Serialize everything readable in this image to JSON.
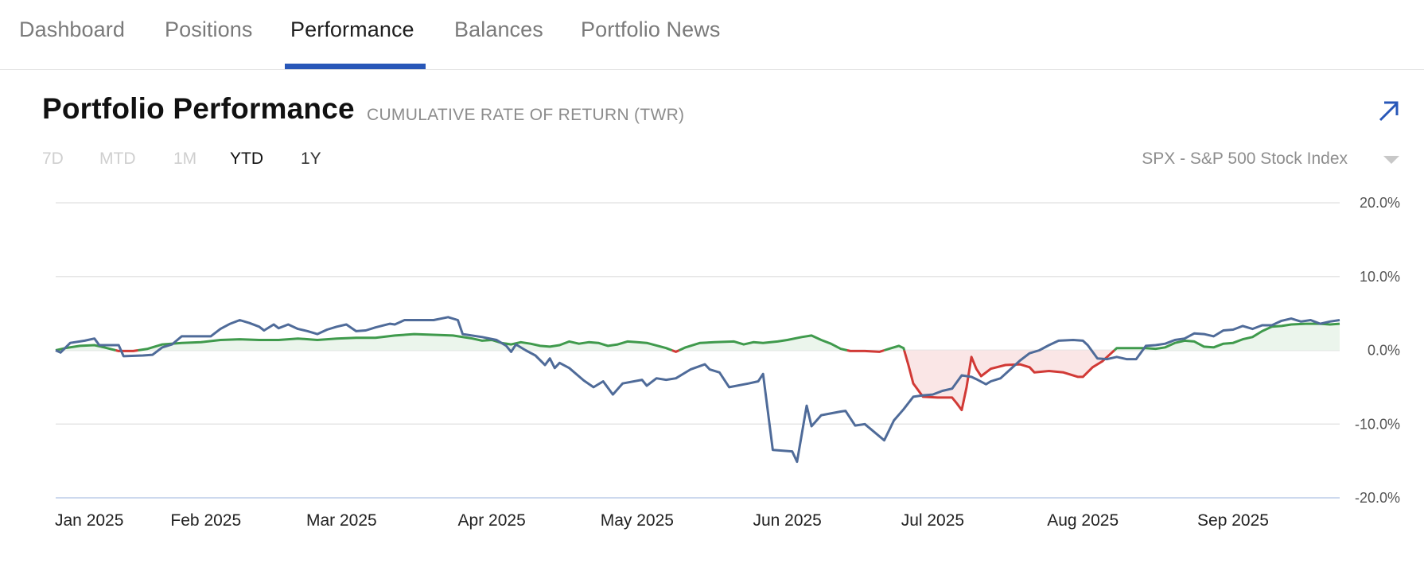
{
  "nav": {
    "tabs": [
      {
        "label": "Dashboard",
        "active": false
      },
      {
        "label": "Positions",
        "active": false
      },
      {
        "label": "Performance",
        "active": true
      },
      {
        "label": "Balances",
        "active": false
      },
      {
        "label": "Portfolio News",
        "active": false
      }
    ]
  },
  "header": {
    "title": "Portfolio Performance",
    "subtitle": "CUMULATIVE RATE OF RETURN (TWR)",
    "expand_icon": "arrow-up-right-icon"
  },
  "ranges": [
    {
      "label": "7D",
      "state": "disabled"
    },
    {
      "label": "MTD",
      "state": "disabled"
    },
    {
      "label": "1M",
      "state": "disabled"
    },
    {
      "label": "YTD",
      "state": "active"
    },
    {
      "label": "1Y",
      "state": "enabled"
    }
  ],
  "benchmark_select": {
    "selected": "SPX - S&P 500 Stock Index",
    "icon": "caret-down-icon"
  },
  "colors": {
    "accent": "#2857b8",
    "series_blue": "#4f6b99",
    "series_green": "#3f9a4c",
    "series_red": "#d13a36",
    "fill_green": "#ebf5ec",
    "fill_red": "#fae6e6",
    "grid": "#e6e6e6",
    "baseline_axis": "#cdd9ee"
  },
  "chart_data": {
    "type": "line",
    "title": "Portfolio Performance",
    "subtitle": "CUMULATIVE RATE OF RETURN (TWR)",
    "xlabel": "",
    "ylabel": "",
    "x_unit": "day of year 2025",
    "xlim": [
      0,
      265
    ],
    "ylim": [
      -20,
      20
    ],
    "grid": true,
    "legend": "none",
    "y_ticks": [
      20,
      10,
      0,
      -10,
      -20
    ],
    "y_tick_labels": [
      "20.0%",
      "10.0%",
      "0.0%",
      "-10.0%",
      "-20.0%"
    ],
    "x_ticks": [
      0,
      31,
      59,
      90,
      120,
      151,
      181,
      212,
      243
    ],
    "x_tick_labels": [
      "Jan 2025",
      "Feb 2025",
      "Mar 2025",
      "Apr 2025",
      "May 2025",
      "Jun 2025",
      "Jul 2025",
      "Aug 2025",
      "Sep 2025"
    ],
    "series": [
      {
        "name": "SPX - S&P 500 Stock Index",
        "color_rule": "green above 0, red below 0, area filled to 0",
        "points": [
          [
            0,
            0.0
          ],
          [
            2,
            0.3
          ],
          [
            5,
            0.6
          ],
          [
            8,
            0.7
          ],
          [
            10,
            0.4
          ],
          [
            13,
            -0.1
          ],
          [
            16,
            -0.1
          ],
          [
            19,
            0.2
          ],
          [
            22,
            0.8
          ],
          [
            26,
            1.0
          ],
          [
            30,
            1.1
          ],
          [
            34,
            1.4
          ],
          [
            38,
            1.5
          ],
          [
            42,
            1.4
          ],
          [
            46,
            1.4
          ],
          [
            50,
            1.6
          ],
          [
            54,
            1.4
          ],
          [
            58,
            1.6
          ],
          [
            62,
            1.7
          ],
          [
            66,
            1.7
          ],
          [
            70,
            2.0
          ],
          [
            74,
            2.2
          ],
          [
            78,
            2.1
          ],
          [
            82,
            2.0
          ],
          [
            86,
            1.6
          ],
          [
            88,
            1.3
          ],
          [
            90,
            1.4
          ],
          [
            92,
            1.0
          ],
          [
            94,
            0.8
          ],
          [
            96,
            1.1
          ],
          [
            98,
            0.9
          ],
          [
            100,
            0.6
          ],
          [
            102,
            0.5
          ],
          [
            104,
            0.7
          ],
          [
            106,
            1.2
          ],
          [
            108,
            0.9
          ],
          [
            110,
            1.1
          ],
          [
            112,
            1.0
          ],
          [
            114,
            0.6
          ],
          [
            116,
            0.8
          ],
          [
            118,
            1.2
          ],
          [
            120,
            1.1
          ],
          [
            122,
            1.0
          ],
          [
            126,
            0.3
          ],
          [
            128,
            -0.2
          ],
          [
            130,
            0.4
          ],
          [
            133,
            1.0
          ],
          [
            136,
            1.1
          ],
          [
            140,
            1.2
          ],
          [
            142,
            0.8
          ],
          [
            144,
            1.1
          ],
          [
            146,
            1.0
          ],
          [
            149,
            1.2
          ],
          [
            151,
            1.4
          ],
          [
            154,
            1.8
          ],
          [
            156,
            2.0
          ],
          [
            158,
            1.4
          ],
          [
            160,
            0.9
          ],
          [
            162,
            0.2
          ],
          [
            164,
            -0.1
          ],
          [
            167,
            -0.1
          ],
          [
            170,
            -0.2
          ],
          [
            172,
            0.2
          ],
          [
            174,
            0.6
          ],
          [
            175,
            0.3
          ],
          [
            176,
            -2.0
          ],
          [
            177,
            -4.5
          ],
          [
            179,
            -6.3
          ],
          [
            182,
            -6.4
          ],
          [
            185,
            -6.4
          ],
          [
            186,
            -7.2
          ],
          [
            187,
            -8.1
          ],
          [
            188,
            -5.0
          ],
          [
            189,
            -0.9
          ],
          [
            190,
            -2.5
          ],
          [
            191,
            -3.5
          ],
          [
            193,
            -2.5
          ],
          [
            196,
            -2.0
          ],
          [
            199,
            -1.9
          ],
          [
            201,
            -2.3
          ],
          [
            202,
            -3.0
          ],
          [
            205,
            -2.8
          ],
          [
            208,
            -3.0
          ],
          [
            211,
            -3.6
          ],
          [
            212,
            -3.6
          ],
          [
            214,
            -2.3
          ],
          [
            216,
            -1.5
          ],
          [
            218,
            -0.3
          ],
          [
            219,
            0.3
          ],
          [
            222,
            0.3
          ],
          [
            225,
            0.3
          ],
          [
            227,
            0.2
          ],
          [
            229,
            0.4
          ],
          [
            231,
            1.0
          ],
          [
            233,
            1.3
          ],
          [
            235,
            1.2
          ],
          [
            237,
            0.5
          ],
          [
            239,
            0.4
          ],
          [
            241,
            0.9
          ],
          [
            243,
            1.0
          ],
          [
            245,
            1.5
          ],
          [
            247,
            1.8
          ],
          [
            249,
            2.6
          ],
          [
            251,
            3.2
          ],
          [
            253,
            3.3
          ],
          [
            255,
            3.5
          ],
          [
            258,
            3.6
          ],
          [
            261,
            3.6
          ],
          [
            263,
            3.5
          ],
          [
            265,
            3.6
          ]
        ]
      },
      {
        "name": "Portfolio",
        "color": "#4f6b99",
        "points": [
          [
            0,
            0.0
          ],
          [
            1,
            -0.3
          ],
          [
            3,
            1.0
          ],
          [
            6,
            1.3
          ],
          [
            8,
            1.6
          ],
          [
            9,
            0.7
          ],
          [
            11,
            0.7
          ],
          [
            13,
            0.7
          ],
          [
            14,
            -0.8
          ],
          [
            18,
            -0.7
          ],
          [
            20,
            -0.6
          ],
          [
            22,
            0.4
          ],
          [
            24,
            0.8
          ],
          [
            26,
            1.9
          ],
          [
            29,
            1.9
          ],
          [
            32,
            1.9
          ],
          [
            34,
            2.9
          ],
          [
            36,
            3.6
          ],
          [
            38,
            4.1
          ],
          [
            40,
            3.7
          ],
          [
            42,
            3.2
          ],
          [
            43,
            2.7
          ],
          [
            45,
            3.5
          ],
          [
            46,
            3.0
          ],
          [
            48,
            3.5
          ],
          [
            50,
            2.9
          ],
          [
            52,
            2.6
          ],
          [
            54,
            2.2
          ],
          [
            56,
            2.8
          ],
          [
            58,
            3.2
          ],
          [
            60,
            3.5
          ],
          [
            62,
            2.6
          ],
          [
            64,
            2.7
          ],
          [
            66,
            3.1
          ],
          [
            69,
            3.6
          ],
          [
            70,
            3.5
          ],
          [
            72,
            4.1
          ],
          [
            78,
            4.1
          ],
          [
            81,
            4.5
          ],
          [
            83,
            4.1
          ],
          [
            84,
            2.2
          ],
          [
            88,
            1.8
          ],
          [
            91,
            1.4
          ],
          [
            92,
            1.0
          ],
          [
            93,
            0.6
          ],
          [
            94,
            -0.2
          ],
          [
            95,
            0.8
          ],
          [
            97,
            0.0
          ],
          [
            99,
            -0.7
          ],
          [
            101,
            -2.0
          ],
          [
            102,
            -1.1
          ],
          [
            103,
            -2.4
          ],
          [
            104,
            -1.7
          ],
          [
            106,
            -2.4
          ],
          [
            109,
            -4.1
          ],
          [
            111,
            -5.0
          ],
          [
            113,
            -4.2
          ],
          [
            115,
            -6.0
          ],
          [
            117,
            -4.5
          ],
          [
            121,
            -4.0
          ],
          [
            122,
            -4.8
          ],
          [
            124,
            -3.8
          ],
          [
            126,
            -4.0
          ],
          [
            128,
            -3.8
          ],
          [
            131,
            -2.6
          ],
          [
            134,
            -1.9
          ],
          [
            135,
            -2.6
          ],
          [
            137,
            -3.0
          ],
          [
            139,
            -5.0
          ],
          [
            143,
            -4.5
          ],
          [
            145,
            -4.2
          ],
          [
            146,
            -3.2
          ],
          [
            148,
            -13.5
          ],
          [
            152,
            -13.7
          ],
          [
            153,
            -15.1
          ],
          [
            155,
            -7.5
          ],
          [
            156,
            -10.3
          ],
          [
            158,
            -8.8
          ],
          [
            162,
            -8.3
          ],
          [
            163,
            -8.2
          ],
          [
            165,
            -10.2
          ],
          [
            167,
            -10.0
          ],
          [
            171,
            -12.2
          ],
          [
            173,
            -9.5
          ],
          [
            175,
            -8.0
          ],
          [
            177,
            -6.3
          ],
          [
            179,
            -6.1
          ],
          [
            181,
            -6.0
          ],
          [
            183,
            -5.5
          ],
          [
            185,
            -5.2
          ],
          [
            187,
            -3.4
          ],
          [
            189,
            -3.6
          ],
          [
            190,
            -3.9
          ],
          [
            192,
            -4.6
          ],
          [
            193,
            -4.2
          ],
          [
            195,
            -3.8
          ],
          [
            197,
            -2.6
          ],
          [
            199,
            -1.4
          ],
          [
            201,
            -0.4
          ],
          [
            203,
            0.0
          ],
          [
            205,
            0.7
          ],
          [
            207,
            1.3
          ],
          [
            210,
            1.4
          ],
          [
            212,
            1.3
          ],
          [
            213,
            0.7
          ],
          [
            215,
            -1.1
          ],
          [
            217,
            -1.2
          ],
          [
            219,
            -0.9
          ],
          [
            221,
            -1.2
          ],
          [
            223,
            -1.2
          ],
          [
            225,
            0.6
          ],
          [
            227,
            0.7
          ],
          [
            229,
            0.9
          ],
          [
            231,
            1.4
          ],
          [
            233,
            1.6
          ],
          [
            235,
            2.3
          ],
          [
            237,
            2.2
          ],
          [
            239,
            1.9
          ],
          [
            241,
            2.7
          ],
          [
            243,
            2.8
          ],
          [
            245,
            3.3
          ],
          [
            247,
            2.9
          ],
          [
            249,
            3.4
          ],
          [
            251,
            3.4
          ],
          [
            253,
            4.0
          ],
          [
            255,
            4.3
          ],
          [
            257,
            3.9
          ],
          [
            259,
            4.1
          ],
          [
            261,
            3.6
          ],
          [
            263,
            3.9
          ],
          [
            265,
            4.1
          ]
        ]
      }
    ]
  }
}
